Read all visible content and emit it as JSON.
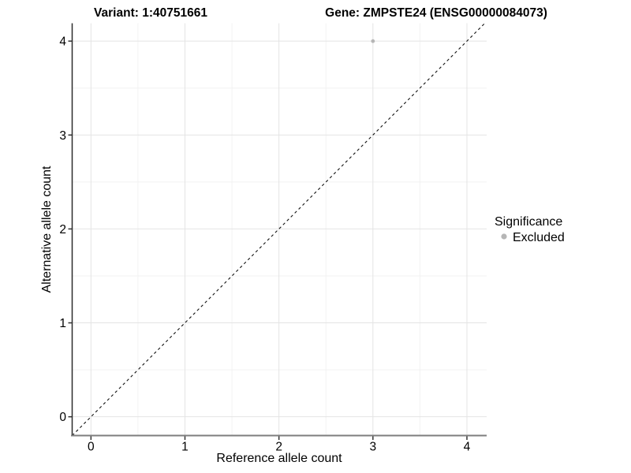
{
  "figure": {
    "title_left": "Variant: 1:40751661",
    "title_right": "Gene: ZMPSTE24 (ENSG00000084073)"
  },
  "legend": {
    "title": "Significance",
    "items": [
      {
        "label": "Excluded",
        "color": "#b6b6b6"
      }
    ]
  },
  "colors": {
    "point": "#b6b6b6",
    "grid_major": "#e4e4e4",
    "grid_minor": "#f2f2f2",
    "x_axis_line": "#7e7e7e",
    "y_axis_line": "#2b2b2b",
    "tick": "#333333",
    "identity_line": "#111111"
  },
  "chart_data": {
    "type": "scatter",
    "title": "Variant: 1:40751661 | Gene: ZMPSTE24 (ENSG00000084073)",
    "xlabel": "Reference allele count",
    "ylabel": "Alternative allele count",
    "xlim": [
      -0.2,
      4.21
    ],
    "ylim": [
      -0.2,
      4.19
    ],
    "x_ticks": [
      0,
      1,
      2,
      3,
      4
    ],
    "y_ticks": [
      0,
      1,
      2,
      3,
      4
    ],
    "minor_ticks": [
      0.5,
      1.5,
      2.5,
      3.5
    ],
    "grid": true,
    "legend_position": "right",
    "reference_line": {
      "kind": "identity",
      "style": "dashed"
    },
    "series": [
      {
        "name": "Excluded",
        "color": "#b6b6b6",
        "points": [
          {
            "x": 3,
            "y": 4
          }
        ]
      }
    ]
  }
}
